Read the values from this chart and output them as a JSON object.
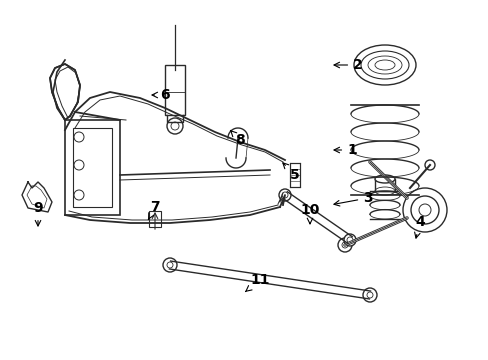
{
  "background_color": "#ffffff",
  "line_color": "#2a2a2a",
  "text_color": "#000000",
  "fig_width": 4.89,
  "fig_height": 3.6,
  "dpi": 100
}
